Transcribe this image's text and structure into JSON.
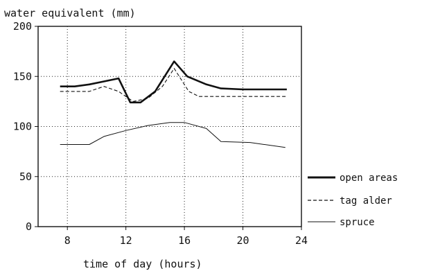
{
  "chart_data": {
    "type": "line",
    "title": "",
    "ylabel": "water equivalent (mm)",
    "xlabel": "time of day (hours)",
    "xlim": [
      6,
      24
    ],
    "ylim": [
      0,
      200
    ],
    "x_ticks": [
      8,
      12,
      16,
      20,
      24
    ],
    "y_ticks": [
      0,
      50,
      100,
      150,
      200
    ],
    "x_tick_labels": [
      "8",
      "12",
      "16",
      "20",
      "24"
    ],
    "y_tick_labels": [
      "0",
      "50",
      "100",
      "150",
      "200"
    ],
    "grid": true,
    "legend_position": "right",
    "series": [
      {
        "name": "open areas",
        "style": "thick-solid",
        "color": "#111111",
        "x": [
          7.5,
          8.5,
          9.5,
          10.5,
          11.5,
          12.3,
          13.0,
          14.0,
          15.3,
          16.2,
          17.5,
          18.5,
          20.0,
          21.5,
          23.0
        ],
        "y": [
          140,
          140,
          142,
          145,
          148,
          124,
          124,
          135,
          165,
          150,
          142,
          138,
          137,
          137,
          137
        ]
      },
      {
        "name": "tag alder",
        "style": "dashed",
        "color": "#111111",
        "x": [
          7.5,
          9.5,
          10.5,
          11.5,
          12.5,
          13.5,
          14.5,
          15.3,
          16.3,
          17.0,
          18.5,
          20.0,
          23.0
        ],
        "y": [
          135,
          135,
          140,
          135,
          125,
          128,
          140,
          158,
          135,
          130,
          130,
          130,
          130
        ]
      },
      {
        "name": "spruce",
        "style": "thin-solid",
        "color": "#111111",
        "x": [
          7.5,
          8.5,
          9.5,
          10.5,
          12.0,
          13.5,
          15.0,
          16.0,
          17.5,
          18.5,
          20.5,
          22.9
        ],
        "y": [
          82,
          82,
          82,
          90,
          96,
          101,
          104,
          104,
          98,
          85,
          84,
          79
        ]
      }
    ]
  }
}
